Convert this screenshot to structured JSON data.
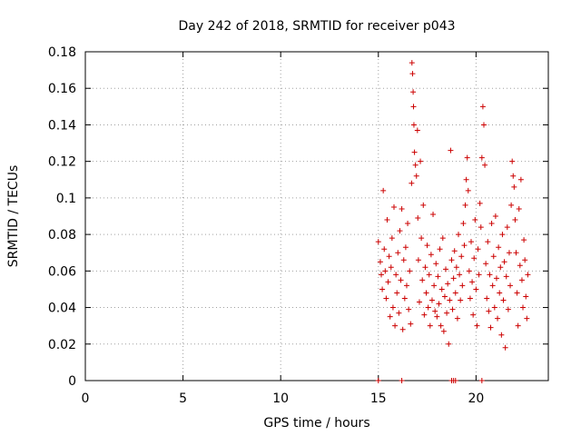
{
  "chart_data": {
    "type": "scatter",
    "title": "Day 242 of 2018, SRMTID for receiver p043",
    "xlabel": "GPS time / hours",
    "ylabel": "SRMTID / TECUs",
    "xlim": [
      0,
      23.7
    ],
    "ylim": [
      0,
      0.18
    ],
    "xticks": [
      0,
      5,
      10,
      15,
      20
    ],
    "xtick_labels": [
      "0",
      "5",
      "10",
      "15",
      "20"
    ],
    "yticks": [
      0,
      0.02,
      0.04,
      0.06,
      0.08,
      0.1,
      0.12,
      0.14,
      0.16,
      0.18
    ],
    "ytick_labels": [
      "0",
      "0.02",
      "0.04",
      "0.06",
      "0.08",
      "0.1",
      "0.12",
      "0.14",
      "0.16",
      "0.18"
    ],
    "grid": true,
    "marker": "+",
    "color": "#cc0000",
    "series": [
      {
        "name": "SRMTID",
        "points": [
          [
            15.0,
            0.0
          ],
          [
            16.2,
            0.0
          ],
          [
            18.75,
            0.0
          ],
          [
            18.85,
            0.0
          ],
          [
            18.95,
            0.0
          ],
          [
            20.3,
            0.0
          ],
          [
            15.0,
            0.076
          ],
          [
            15.1,
            0.065
          ],
          [
            15.15,
            0.058
          ],
          [
            15.2,
            0.05
          ],
          [
            15.25,
            0.104
          ],
          [
            15.3,
            0.072
          ],
          [
            15.35,
            0.06
          ],
          [
            15.4,
            0.045
          ],
          [
            15.45,
            0.088
          ],
          [
            15.5,
            0.054
          ],
          [
            15.55,
            0.068
          ],
          [
            15.6,
            0.035
          ],
          [
            15.65,
            0.062
          ],
          [
            15.7,
            0.078
          ],
          [
            15.75,
            0.04
          ],
          [
            15.8,
            0.095
          ],
          [
            15.85,
            0.03
          ],
          [
            15.9,
            0.058
          ],
          [
            15.95,
            0.048
          ],
          [
            16.0,
            0.07
          ],
          [
            16.05,
            0.037
          ],
          [
            16.1,
            0.082
          ],
          [
            16.15,
            0.055
          ],
          [
            16.2,
            0.094
          ],
          [
            16.25,
            0.028
          ],
          [
            16.3,
            0.066
          ],
          [
            16.35,
            0.045
          ],
          [
            16.4,
            0.073
          ],
          [
            16.45,
            0.052
          ],
          [
            16.5,
            0.086
          ],
          [
            16.55,
            0.039
          ],
          [
            16.6,
            0.06
          ],
          [
            16.65,
            0.031
          ],
          [
            16.7,
            0.108
          ],
          [
            16.72,
            0.174
          ],
          [
            16.75,
            0.168
          ],
          [
            16.78,
            0.158
          ],
          [
            16.8,
            0.15
          ],
          [
            16.82,
            0.14
          ],
          [
            16.85,
            0.125
          ],
          [
            16.9,
            0.118
          ],
          [
            16.95,
            0.112
          ],
          [
            17.0,
            0.137
          ],
          [
            17.02,
            0.089
          ],
          [
            17.05,
            0.066
          ],
          [
            17.1,
            0.043
          ],
          [
            17.15,
            0.12
          ],
          [
            17.2,
            0.078
          ],
          [
            17.25,
            0.055
          ],
          [
            17.3,
            0.096
          ],
          [
            17.35,
            0.036
          ],
          [
            17.4,
            0.062
          ],
          [
            17.45,
            0.048
          ],
          [
            17.5,
            0.074
          ],
          [
            17.55,
            0.04
          ],
          [
            17.6,
            0.058
          ],
          [
            17.65,
            0.03
          ],
          [
            17.7,
            0.069
          ],
          [
            17.75,
            0.044
          ],
          [
            17.8,
            0.091
          ],
          [
            17.85,
            0.052
          ],
          [
            17.9,
            0.038
          ],
          [
            17.95,
            0.064
          ],
          [
            18.0,
            0.035
          ],
          [
            18.05,
            0.057
          ],
          [
            18.1,
            0.042
          ],
          [
            18.15,
            0.072
          ],
          [
            18.2,
            0.03
          ],
          [
            18.25,
            0.05
          ],
          [
            18.3,
            0.078
          ],
          [
            18.35,
            0.027
          ],
          [
            18.4,
            0.046
          ],
          [
            18.45,
            0.061
          ],
          [
            18.5,
            0.037
          ],
          [
            18.55,
            0.053
          ],
          [
            18.6,
            0.02
          ],
          [
            18.65,
            0.044
          ],
          [
            18.7,
            0.126
          ],
          [
            18.75,
            0.066
          ],
          [
            18.8,
            0.039
          ],
          [
            18.85,
            0.056
          ],
          [
            18.9,
            0.071
          ],
          [
            18.95,
            0.048
          ],
          [
            19.0,
            0.062
          ],
          [
            19.05,
            0.034
          ],
          [
            19.1,
            0.08
          ],
          [
            19.15,
            0.058
          ],
          [
            19.2,
            0.044
          ],
          [
            19.25,
            0.068
          ],
          [
            19.3,
            0.052
          ],
          [
            19.35,
            0.086
          ],
          [
            19.4,
            0.074
          ],
          [
            19.45,
            0.096
          ],
          [
            19.5,
            0.11
          ],
          [
            19.55,
            0.122
          ],
          [
            19.6,
            0.104
          ],
          [
            19.65,
            0.06
          ],
          [
            19.7,
            0.045
          ],
          [
            19.75,
            0.076
          ],
          [
            19.8,
            0.054
          ],
          [
            19.85,
            0.036
          ],
          [
            19.9,
            0.067
          ],
          [
            19.95,
            0.088
          ],
          [
            20.0,
            0.05
          ],
          [
            20.05,
            0.03
          ],
          [
            20.1,
            0.072
          ],
          [
            20.15,
            0.058
          ],
          [
            20.2,
            0.097
          ],
          [
            20.25,
            0.084
          ],
          [
            20.3,
            0.122
          ],
          [
            20.35,
            0.15
          ],
          [
            20.4,
            0.14
          ],
          [
            20.45,
            0.118
          ],
          [
            20.5,
            0.064
          ],
          [
            20.55,
            0.045
          ],
          [
            20.6,
            0.076
          ],
          [
            20.65,
            0.038
          ],
          [
            20.7,
            0.058
          ],
          [
            20.75,
            0.029
          ],
          [
            20.8,
            0.086
          ],
          [
            20.85,
            0.052
          ],
          [
            20.9,
            0.068
          ],
          [
            20.95,
            0.04
          ],
          [
            21.0,
            0.09
          ],
          [
            21.05,
            0.056
          ],
          [
            21.1,
            0.034
          ],
          [
            21.15,
            0.073
          ],
          [
            21.2,
            0.048
          ],
          [
            21.25,
            0.062
          ],
          [
            21.3,
            0.025
          ],
          [
            21.35,
            0.08
          ],
          [
            21.4,
            0.044
          ],
          [
            21.45,
            0.065
          ],
          [
            21.5,
            0.018
          ],
          [
            21.55,
            0.057
          ],
          [
            21.6,
            0.084
          ],
          [
            21.65,
            0.039
          ],
          [
            21.7,
            0.07
          ],
          [
            21.75,
            0.052
          ],
          [
            21.8,
            0.096
          ],
          [
            21.85,
            0.12
          ],
          [
            21.9,
            0.112
          ],
          [
            21.95,
            0.106
          ],
          [
            22.0,
            0.088
          ],
          [
            22.05,
            0.07
          ],
          [
            22.1,
            0.048
          ],
          [
            22.15,
            0.03
          ],
          [
            22.2,
            0.094
          ],
          [
            22.25,
            0.063
          ],
          [
            22.3,
            0.11
          ],
          [
            22.35,
            0.055
          ],
          [
            22.4,
            0.04
          ],
          [
            22.45,
            0.077
          ],
          [
            22.5,
            0.066
          ],
          [
            22.55,
            0.046
          ],
          [
            22.6,
            0.034
          ],
          [
            22.65,
            0.058
          ]
        ]
      }
    ]
  }
}
